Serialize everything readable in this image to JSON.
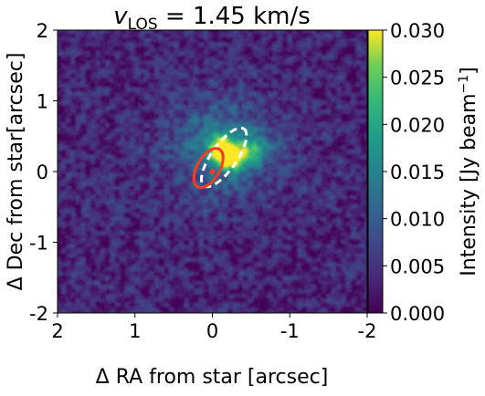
{
  "chart_data": {
    "type": "heatmap",
    "title_prefix": "v",
    "title_sub": "LOS",
    "title_suffix": " = 1.45 km/s",
    "xlabel": "Δ RA from star [arcsec]",
    "ylabel": "Δ Dec from star[arcsec]",
    "xlim": [
      2,
      -2
    ],
    "ylim": [
      -2,
      2
    ],
    "x_ticks": [
      {
        "value": 2,
        "label": "2"
      },
      {
        "value": 1,
        "label": "1"
      },
      {
        "value": 0,
        "label": "0"
      },
      {
        "value": -1,
        "label": "-1"
      },
      {
        "value": -2,
        "label": "-2"
      }
    ],
    "y_ticks": [
      {
        "value": 2,
        "label": "2"
      },
      {
        "value": 1,
        "label": "1"
      },
      {
        "value": 0,
        "label": "0"
      },
      {
        "value": -1,
        "label": "-1"
      },
      {
        "value": -2,
        "label": "-2"
      }
    ],
    "colorbar": {
      "label": "Intensity [Jy beam",
      "label_sup": "−1",
      "label_close": "]",
      "range": [
        0.0,
        0.03
      ],
      "colormap": "viridis",
      "ticks": [
        {
          "value": 0.0,
          "label": "0.000"
        },
        {
          "value": 0.005,
          "label": "0.005"
        },
        {
          "value": 0.01,
          "label": "0.010"
        },
        {
          "value": 0.015,
          "label": "0.015"
        },
        {
          "value": 0.02,
          "label": "0.020"
        },
        {
          "value": 0.025,
          "label": "0.025"
        },
        {
          "value": 0.03,
          "label": "0.030"
        }
      ]
    },
    "emission": {
      "background_level": 0.0035,
      "peak": {
        "x": -0.15,
        "y": 0.25,
        "value": 0.028
      },
      "tail": {
        "x": -0.45,
        "y": 0.3,
        "value": 0.014
      }
    },
    "overlays": [
      {
        "name": "dashed-white-ellipse",
        "color": "#ffffff",
        "style": "dashed",
        "center_x": -0.15,
        "center_y": 0.2,
        "semi_major": 0.45,
        "semi_minor": 0.18,
        "angle_deg": 55
      },
      {
        "name": "red-ellipse",
        "color": "#ff3b1f",
        "style": "solid",
        "center_x": 0.05,
        "center_y": 0.05,
        "semi_major": 0.28,
        "semi_minor": 0.16,
        "angle_deg": 60
      }
    ],
    "star_marker": {
      "x": 0.0,
      "y": 0.0,
      "color": "#ff3b1f"
    },
    "grid": false
  }
}
